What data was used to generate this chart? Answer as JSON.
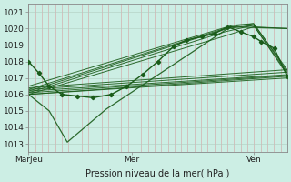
{
  "title": "",
  "xlabel": "Pression niveau de la mer( hPa )",
  "ylabel": "",
  "bg_color": "#cceee4",
  "line_color": "#1a5c1a",
  "ylim": [
    1012.5,
    1021.5
  ],
  "yticks": [
    1013,
    1014,
    1015,
    1016,
    1017,
    1018,
    1019,
    1020,
    1021
  ],
  "xlim": [
    0,
    1.0
  ],
  "xtick_positions": [
    0.0,
    0.4,
    0.87
  ],
  "xtick_labels": [
    "MarJeu",
    "Mer",
    "Ven"
  ],
  "lines": [
    {
      "x": [
        0.0,
        1.0
      ],
      "y": [
        1016.0,
        1017.1
      ]
    },
    {
      "x": [
        0.0,
        1.0
      ],
      "y": [
        1016.0,
        1017.2
      ]
    },
    {
      "x": [
        0.0,
        1.0
      ],
      "y": [
        1016.1,
        1017.2
      ]
    },
    {
      "x": [
        0.0,
        1.0
      ],
      "y": [
        1016.2,
        1017.3
      ]
    },
    {
      "x": [
        0.0,
        1.0
      ],
      "y": [
        1016.3,
        1017.4
      ]
    },
    {
      "x": [
        0.0,
        1.0
      ],
      "y": [
        1016.5,
        1017.5
      ]
    },
    {
      "x": [
        0.0,
        0.78,
        1.0
      ],
      "y": [
        1016.0,
        1020.1,
        1017.2
      ]
    },
    {
      "x": [
        0.0,
        0.75,
        1.0
      ],
      "y": [
        1016.1,
        1019.9,
        1017.2
      ]
    },
    {
      "x": [
        0.0,
        0.73,
        1.0
      ],
      "y": [
        1016.2,
        1020.2,
        1017.3
      ]
    },
    {
      "x": [
        0.0,
        0.74,
        1.0
      ],
      "y": [
        1016.3,
        1020.2,
        1017.4
      ]
    },
    {
      "x": [
        0.0,
        0.76,
        1.0
      ],
      "y": [
        1016.5,
        1020.3,
        1017.5
      ]
    },
    {
      "x": [
        0.0,
        0.78,
        1.0
      ],
      "y": [
        1016.0,
        1020.1,
        1020.0
      ]
    }
  ],
  "dip_line": {
    "x": [
      0.0,
      0.08,
      0.15,
      0.3,
      0.78,
      1.0
    ],
    "y": [
      1016.0,
      1015.0,
      1013.1,
      1015.1,
      1020.1,
      1020.0
    ]
  },
  "marker_line": {
    "x": [
      0.0,
      0.04,
      0.08,
      0.13,
      0.19,
      0.25,
      0.32,
      0.38,
      0.44,
      0.5,
      0.56,
      0.61,
      0.67,
      0.72,
      0.77,
      0.82,
      0.87,
      0.9,
      0.95,
      1.0
    ],
    "y": [
      1018.0,
      1017.3,
      1016.5,
      1016.0,
      1015.9,
      1015.8,
      1016.0,
      1016.5,
      1017.2,
      1018.0,
      1018.9,
      1019.3,
      1019.5,
      1019.7,
      1020.1,
      1019.8,
      1019.5,
      1019.2,
      1018.8,
      1017.1
    ]
  }
}
